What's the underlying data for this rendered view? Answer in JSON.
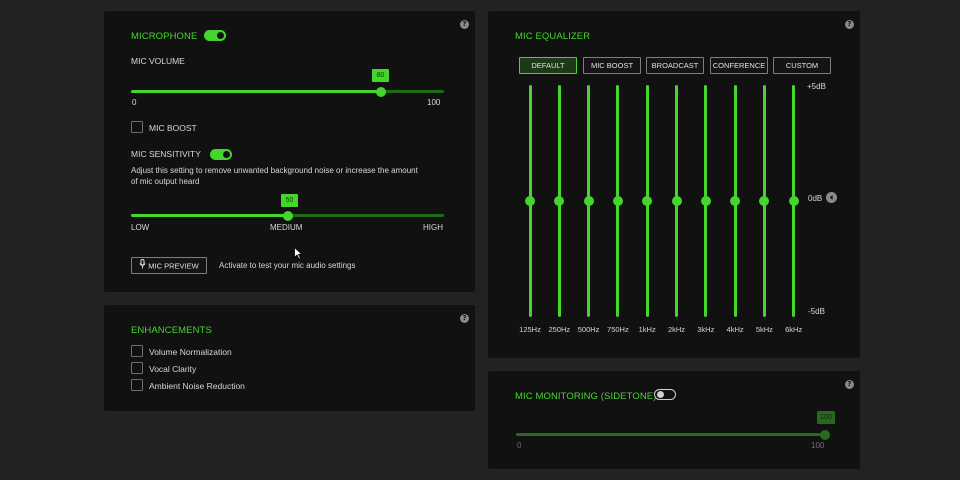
{
  "colors": {
    "accent": "#44d62c",
    "panel": "#111111",
    "background": "#222222"
  },
  "microphone": {
    "title": "MICROPHONE",
    "toggle_on": true,
    "help_icon": "?",
    "volume": {
      "label": "MIC VOLUME",
      "value": 80,
      "value_text": "80",
      "min_label": "0",
      "max_label": "100"
    },
    "mic_boost": {
      "label": "MIC BOOST",
      "checked": false
    },
    "sensitivity": {
      "label": "MIC SENSITIVITY",
      "toggle_on": true,
      "description_line1": "Adjust this setting to remove unwanted background noise or increase the amount",
      "description_line2": "of mic output heard",
      "value": 50,
      "value_text": "50",
      "low_label": "LOW",
      "medium_label": "MEDIUM",
      "high_label": "HIGH"
    },
    "preview": {
      "button_label": "MIC PREVIEW",
      "icon": "microphone-icon",
      "hint": "Activate to test your mic audio settings"
    }
  },
  "enhancements": {
    "title": "ENHANCEMENTS",
    "help_icon": "?",
    "items": [
      {
        "label": "Volume Normalization",
        "checked": false
      },
      {
        "label": "Vocal Clarity",
        "checked": false
      },
      {
        "label": "Ambient Noise Reduction",
        "checked": false
      }
    ]
  },
  "equalizer": {
    "title": "MIC EQUALIZER",
    "help_icon": "?",
    "presets": [
      "DEFAULT",
      "MIC BOOST",
      "BROADCAST",
      "CONFERENCE",
      "CUSTOM"
    ],
    "active_preset": "DEFAULT",
    "top_label": "+5dB",
    "mid_label": "0dB",
    "bottom_label": "-5dB",
    "bands": [
      {
        "freq": "125Hz",
        "gain_db": 0
      },
      {
        "freq": "250Hz",
        "gain_db": 0
      },
      {
        "freq": "500Hz",
        "gain_db": 0
      },
      {
        "freq": "750Hz",
        "gain_db": 0
      },
      {
        "freq": "1kHz",
        "gain_db": 0
      },
      {
        "freq": "2kHz",
        "gain_db": 0
      },
      {
        "freq": "3kHz",
        "gain_db": 0
      },
      {
        "freq": "4kHz",
        "gain_db": 0
      },
      {
        "freq": "5kHz",
        "gain_db": 0
      },
      {
        "freq": "6kHz",
        "gain_db": 0
      }
    ]
  },
  "monitoring": {
    "title": "MIC MONITORING (SIDETONE)",
    "help_icon": "?",
    "toggle_on": false,
    "value": 100,
    "value_text": "100",
    "min_label": "0",
    "max_label": "100"
  }
}
